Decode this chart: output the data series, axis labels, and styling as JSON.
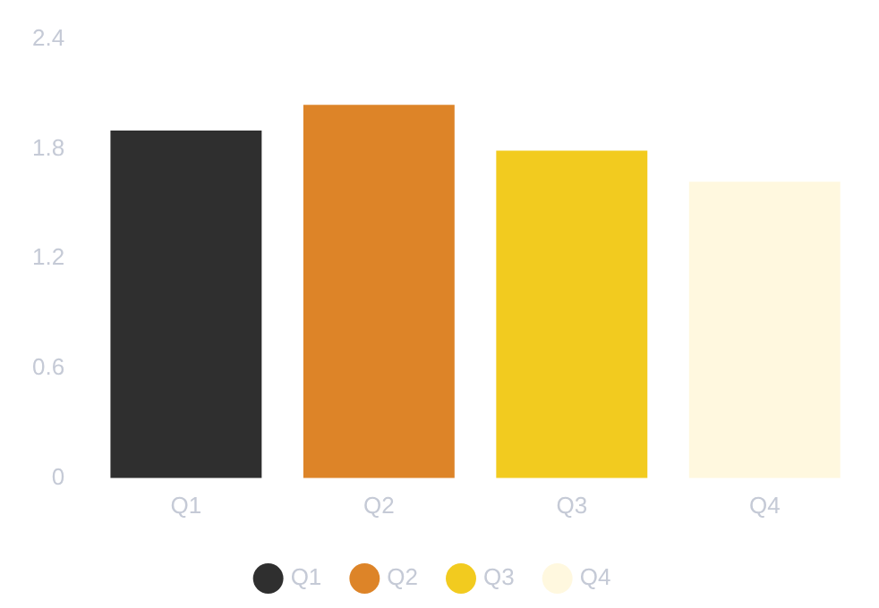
{
  "chart_data": {
    "type": "bar",
    "categories": [
      "Q1",
      "Q2",
      "Q3",
      "Q4"
    ],
    "series": [
      {
        "name": "Q1",
        "color": "#2f2f2f",
        "values": [
          1.9,
          null,
          null,
          null
        ]
      },
      {
        "name": "Q2",
        "color": "#dd8428",
        "values": [
          null,
          2.04,
          null,
          null
        ]
      },
      {
        "name": "Q3",
        "color": "#f2cb1f",
        "values": [
          null,
          null,
          1.79,
          null
        ]
      },
      {
        "name": "Q4",
        "color": "#fff8df",
        "values": [
          null,
          null,
          null,
          1.62
        ]
      }
    ],
    "ylim": [
      0,
      2.4
    ],
    "yticks": [
      0,
      0.6,
      1.2,
      1.8,
      2.4
    ],
    "legend": "bottom"
  }
}
